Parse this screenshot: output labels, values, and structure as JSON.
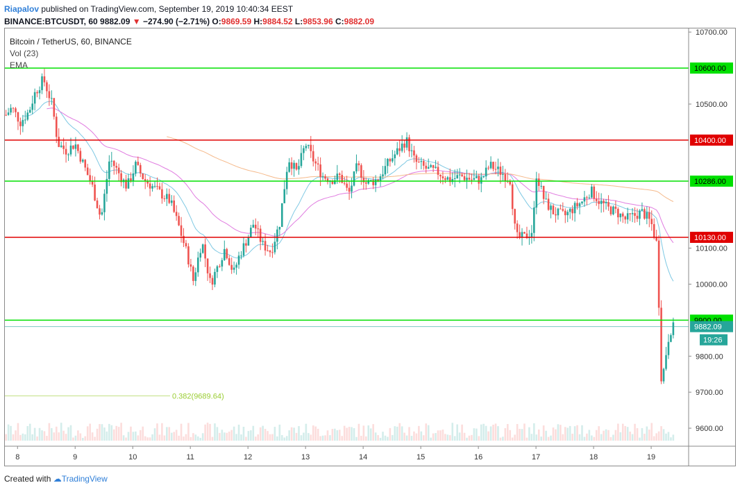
{
  "header": {
    "publisher": "Riapalov",
    "published_text": " published on TradingView.com, September 19, 2019 10:40:34 EEST",
    "symbol": "BINANCE:BTCUSDT, 60",
    "last": "9882.09",
    "change": "−274.90 (−2.71%)",
    "o_label": "O:",
    "o_value": "9869.59",
    "h_label": "H:",
    "h_value": "9884.52",
    "l_label": "L:",
    "l_value": "9853.96",
    "c_label": "C:",
    "c_value": "9882.09"
  },
  "legend": {
    "title": "Bitcoin / TetherUS, 60, BINANCE",
    "vol": "Vol (23)",
    "ema": "EMA"
  },
  "footer": {
    "created": "Created with",
    "brand": "TradingView"
  },
  "colors": {
    "up": "#26a69a",
    "down": "#ef5350",
    "green_line": "#00e000",
    "red_line": "#e00000",
    "ema_fast": "#7ec8e3",
    "ema_mid": "#e07be0",
    "ema_slow": "#f5b98a",
    "fib": "#9acd32"
  },
  "chart_data": {
    "type": "candlestick",
    "y_ticks": [
      {
        "value": 10700,
        "label": "10700.00"
      },
      {
        "value": 10500,
        "label": "10500.00"
      },
      {
        "value": 10100,
        "label": "10100.00"
      },
      {
        "value": 10000,
        "label": "10000.00"
      },
      {
        "value": 9800,
        "label": "9800.00"
      },
      {
        "value": 9700,
        "label": "9700.00"
      },
      {
        "value": 9600,
        "label": "9600.00"
      }
    ],
    "x_ticks": [
      {
        "day": 8,
        "label": "8"
      },
      {
        "day": 9,
        "label": "9"
      },
      {
        "day": 10,
        "label": "10"
      },
      {
        "day": 11,
        "label": "11"
      },
      {
        "day": 12,
        "label": "12"
      },
      {
        "day": 13,
        "label": "13"
      },
      {
        "day": 14,
        "label": "14"
      },
      {
        "day": 15,
        "label": "15"
      },
      {
        "day": 16,
        "label": "16"
      },
      {
        "day": 17,
        "label": "17"
      },
      {
        "day": 18,
        "label": "18"
      },
      {
        "day": 19,
        "label": "19"
      }
    ],
    "ylim": [
      9550,
      10710
    ],
    "xlim": [
      7.78,
      19.65
    ],
    "horizontal_levels": [
      {
        "value": 10600,
        "label": "10600.00",
        "color": "green"
      },
      {
        "value": 10400,
        "label": "10400.00",
        "color": "red"
      },
      {
        "value": 10286,
        "label": "10286.00",
        "color": "green"
      },
      {
        "value": 10130,
        "label": "10130.00",
        "color": "red"
      },
      {
        "value": 9900,
        "label": "9900.00",
        "color": "green"
      }
    ],
    "current_price": {
      "value": 9882.09,
      "label": "9882.09",
      "countdown": "19:26"
    },
    "fib_level": {
      "value": 9689.64,
      "label": "0.382(9689.64)"
    },
    "price_path": [
      [
        7.8,
        10470
      ],
      [
        7.9,
        10490
      ],
      [
        8.05,
        10450
      ],
      [
        8.2,
        10480
      ],
      [
        8.3,
        10530
      ],
      [
        8.45,
        10570
      ],
      [
        8.6,
        10500
      ],
      [
        8.7,
        10390
      ],
      [
        8.85,
        10370
      ],
      [
        9.0,
        10390
      ],
      [
        9.15,
        10330
      ],
      [
        9.3,
        10270
      ],
      [
        9.45,
        10180
      ],
      [
        9.6,
        10350
      ],
      [
        9.75,
        10310
      ],
      [
        9.9,
        10270
      ],
      [
        10.05,
        10330
      ],
      [
        10.2,
        10290
      ],
      [
        10.35,
        10270
      ],
      [
        10.5,
        10250
      ],
      [
        10.65,
        10230
      ],
      [
        10.8,
        10160
      ],
      [
        10.95,
        10080
      ],
      [
        11.05,
        10010
      ],
      [
        11.2,
        10120
      ],
      [
        11.35,
        10000
      ],
      [
        11.5,
        10060
      ],
      [
        11.6,
        10100
      ],
      [
        11.75,
        10030
      ],
      [
        11.85,
        10080
      ],
      [
        12.0,
        10130
      ],
      [
        12.1,
        10170
      ],
      [
        12.25,
        10110
      ],
      [
        12.4,
        10090
      ],
      [
        12.55,
        10170
      ],
      [
        12.7,
        10350
      ],
      [
        12.85,
        10310
      ],
      [
        13.0,
        10390
      ],
      [
        13.15,
        10340
      ],
      [
        13.3,
        10300
      ],
      [
        13.45,
        10290
      ],
      [
        13.6,
        10300
      ],
      [
        13.75,
        10250
      ],
      [
        13.9,
        10330
      ],
      [
        14.05,
        10280
      ],
      [
        14.25,
        10290
      ],
      [
        14.45,
        10340
      ],
      [
        14.6,
        10370
      ],
      [
        14.75,
        10400
      ],
      [
        14.9,
        10340
      ],
      [
        15.1,
        10320
      ],
      [
        15.3,
        10310
      ],
      [
        15.5,
        10290
      ],
      [
        15.7,
        10300
      ],
      [
        15.9,
        10290
      ],
      [
        16.05,
        10290
      ],
      [
        16.2,
        10330
      ],
      [
        16.4,
        10310
      ],
      [
        16.55,
        10290
      ],
      [
        16.65,
        10130
      ],
      [
        16.8,
        10130
      ],
      [
        16.95,
        10150
      ],
      [
        17.0,
        10310
      ],
      [
        17.15,
        10230
      ],
      [
        17.3,
        10200
      ],
      [
        17.5,
        10190
      ],
      [
        17.65,
        10210
      ],
      [
        17.8,
        10230
      ],
      [
        17.95,
        10260
      ],
      [
        18.1,
        10230
      ],
      [
        18.25,
        10210
      ],
      [
        18.4,
        10200
      ],
      [
        18.55,
        10180
      ],
      [
        18.7,
        10190
      ],
      [
        18.85,
        10200
      ],
      [
        19.0,
        10170
      ],
      [
        19.1,
        10110
      ],
      [
        19.18,
        9720
      ],
      [
        19.25,
        9800
      ],
      [
        19.32,
        9870
      ],
      [
        19.4,
        9882
      ]
    ]
  }
}
